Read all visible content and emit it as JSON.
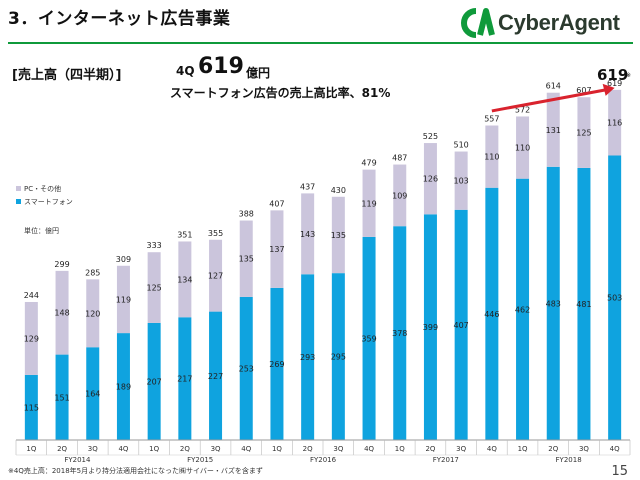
{
  "header": {
    "title": "3．インターネット広告事業",
    "logo_text": "CyberAgent"
  },
  "summary": {
    "section_label": "[売上高（四半期）]",
    "quarter": "4Q",
    "value": "619",
    "unit": "億円",
    "subhead": "スマートフォン広告の売上高比率、81%"
  },
  "legend": {
    "other": "PC・その他",
    "smartphone": "スマートフォン"
  },
  "unit_note": "単位：億円",
  "callout": {
    "value": "619",
    "mark": "※"
  },
  "footnote": "※4Q売上高：2018年5月より持分法適用会社になった㈱サイバー・バズを含まず",
  "page_number": "15",
  "colors": {
    "smartphone": "#0fa3df",
    "other": "#cbc5dc",
    "accent_green": "#0f9a3b",
    "arrow": "#d9232e"
  },
  "chart_data": {
    "type": "bar",
    "stacked": true,
    "categories": [
      "1Q",
      "2Q",
      "3Q",
      "4Q",
      "1Q",
      "2Q",
      "3Q",
      "4Q",
      "1Q",
      "2Q",
      "3Q",
      "4Q",
      "1Q",
      "2Q",
      "3Q",
      "4Q",
      "1Q",
      "2Q",
      "3Q",
      "4Q"
    ],
    "groups": [
      {
        "label": "FY2014",
        "count": 4
      },
      {
        "label": "FY2015",
        "count": 4
      },
      {
        "label": "FY2016",
        "count": 4
      },
      {
        "label": "FY2017",
        "count": 4
      },
      {
        "label": "FY2018",
        "count": 4
      }
    ],
    "series": [
      {
        "name": "スマートフォン",
        "values": [
          115,
          151,
          164,
          189,
          207,
          217,
          227,
          253,
          269,
          293,
          295,
          359,
          378,
          399,
          407,
          446,
          462,
          483,
          481,
          503
        ]
      },
      {
        "name": "PC・その他",
        "values": [
          129,
          148,
          120,
          119,
          125,
          134,
          127,
          135,
          137,
          143,
          135,
          119,
          109,
          126,
          103,
          110,
          110,
          131,
          125,
          116
        ]
      }
    ],
    "totals": [
      244,
      299,
      285,
      309,
      333,
      351,
      355,
      388,
      407,
      437,
      430,
      479,
      487,
      525,
      510,
      557,
      572,
      614,
      607,
      619
    ],
    "ylim": [
      0,
      640
    ],
    "legend_position": "top-left",
    "grid": false
  }
}
